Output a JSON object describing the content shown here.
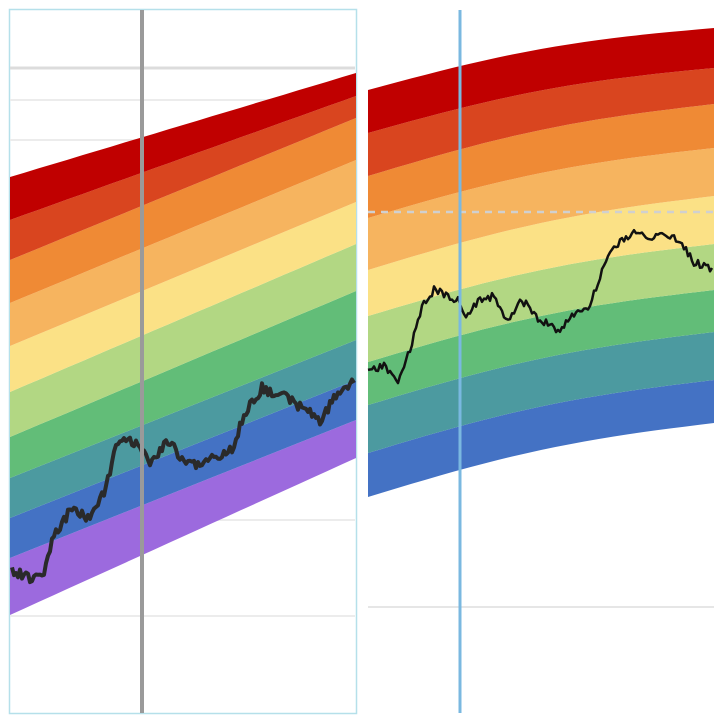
{
  "chart_data": [
    {
      "type": "area",
      "panel": "left",
      "bands_bottom_to_top": [
        "#9c6ade",
        "#4472c4",
        "#4c9aa0",
        "#62bd78",
        "#b2d783",
        "#fbe186",
        "#f6b45f",
        "#ef8a35",
        "#d9451f",
        "#c00000"
      ],
      "price_line_color": "#2a2a2a",
      "vertical_marker_color": "#9a9a9a",
      "frame_color": "#b5e0ea",
      "grid": true
    },
    {
      "type": "area",
      "panel": "right",
      "bands_bottom_to_top": [
        "#4472c4",
        "#4c9aa0",
        "#62bd78",
        "#b2d783",
        "#fbe186",
        "#f6b45f",
        "#ef8a35",
        "#d9451f",
        "#c00000"
      ],
      "price_line_color": "#111111",
      "vertical_marker_color": "#7ab8e0",
      "reference_line": "dashed",
      "reference_line_color": "#d0d0d0",
      "grid": true
    }
  ]
}
